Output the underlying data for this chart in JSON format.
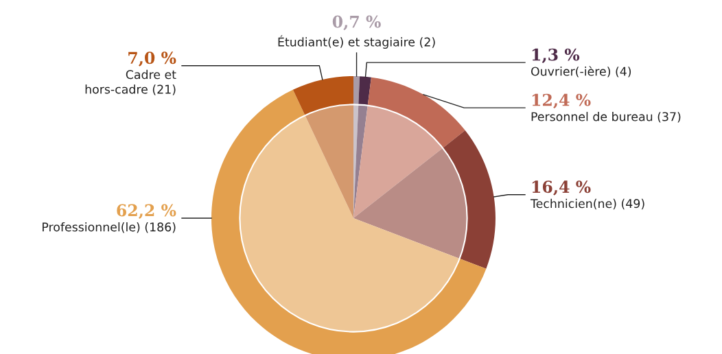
{
  "chart_data": {
    "type": "donut",
    "categories": [
      "Étudiant(e) et stagiaire (2)",
      "Ouvrier(-ière) (4)",
      "Personnel de bureau (37)",
      "Technicien(ne) (49)",
      "Professionnel(le) (186)",
      "Cadre et\nhors-cadre (21)"
    ],
    "series": [
      {
        "values": [
          0.7,
          1.3,
          12.4,
          16.4,
          62.2,
          7.0
        ],
        "colors": [
          "#a99ba7",
          "#4e2b48",
          "#c06a56",
          "#8b4036",
          "#e3a04e",
          "#b85516"
        ]
      },
      {
        "type": "pie",
        "values": [
          0.7,
          1.3,
          12.4,
          16.4,
          62.2,
          7.0
        ],
        "colors": [
          "#cbc3ca",
          "#958091",
          "#d9a69a",
          "#b98c86",
          "#eec695",
          "#d4996e"
        ]
      }
    ],
    "value_labels": [
      "0,7 %",
      "1,3 %",
      "12,4 %",
      "16,4 %",
      "62,2 %",
      "7,0 %"
    ]
  }
}
